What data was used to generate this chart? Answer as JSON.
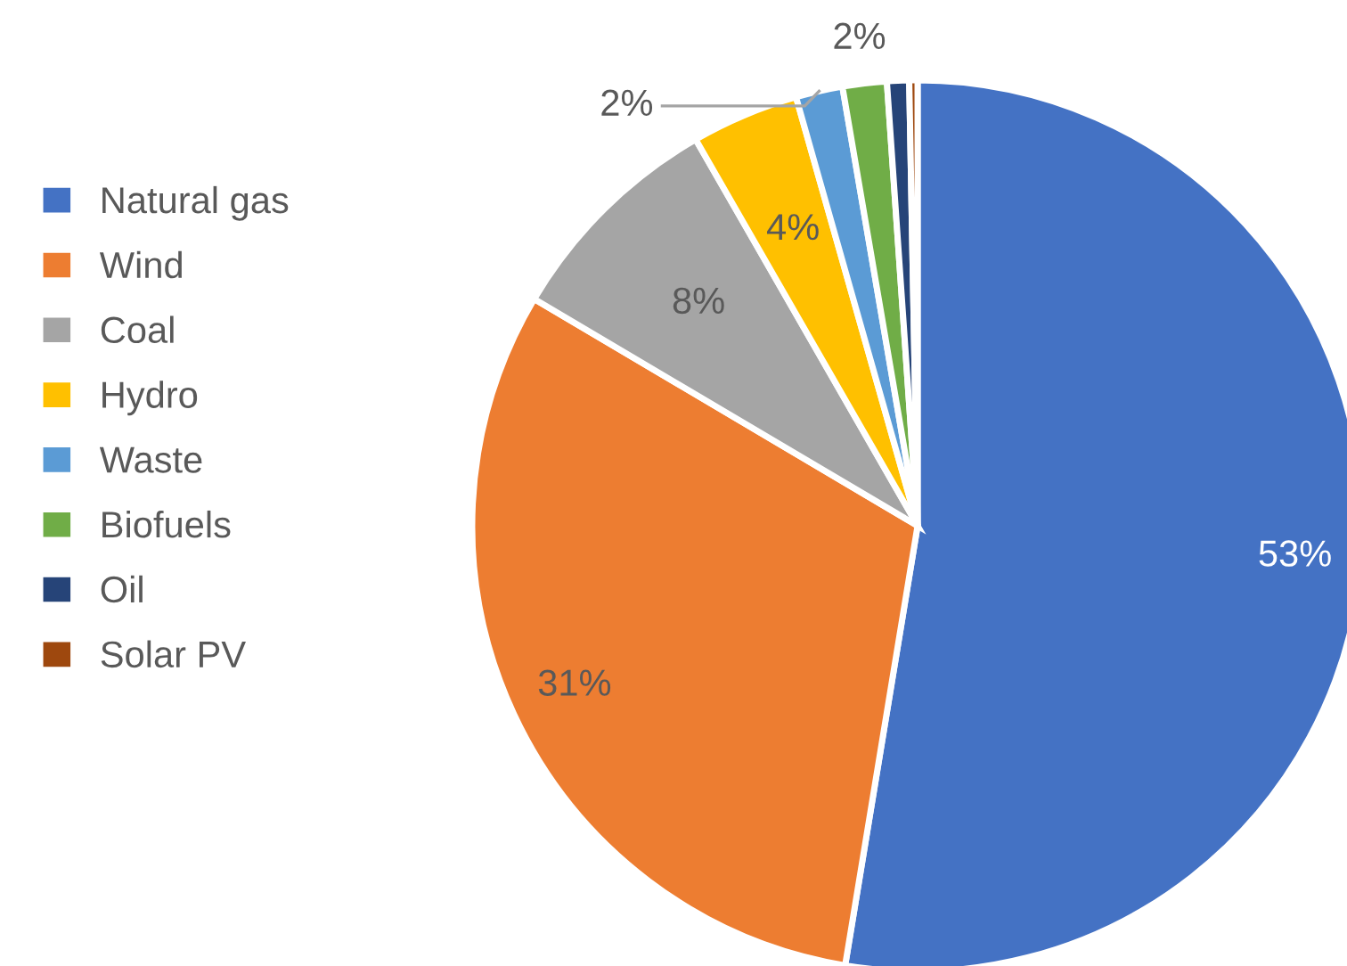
{
  "chart_data": {
    "type": "pie",
    "categories": [
      "Natural gas",
      "Wind",
      "Coal",
      "Hydro",
      "Waste",
      "Biofuels",
      "Oil",
      "Solar PV"
    ],
    "values": [
      52.6,
      30.9,
      8.2,
      3.9,
      1.7,
      1.6,
      0.8,
      0.3
    ],
    "colors": [
      "#4472c4",
      "#ed7d31",
      "#a5a5a5",
      "#ffc000",
      "#5b9bd5",
      "#70ad47",
      "#264478",
      "#9e480e"
    ],
    "value_labels": [
      "53%",
      "31%",
      "8%",
      "4%",
      "2%",
      "2%",
      null,
      null
    ],
    "legend": "left"
  }
}
